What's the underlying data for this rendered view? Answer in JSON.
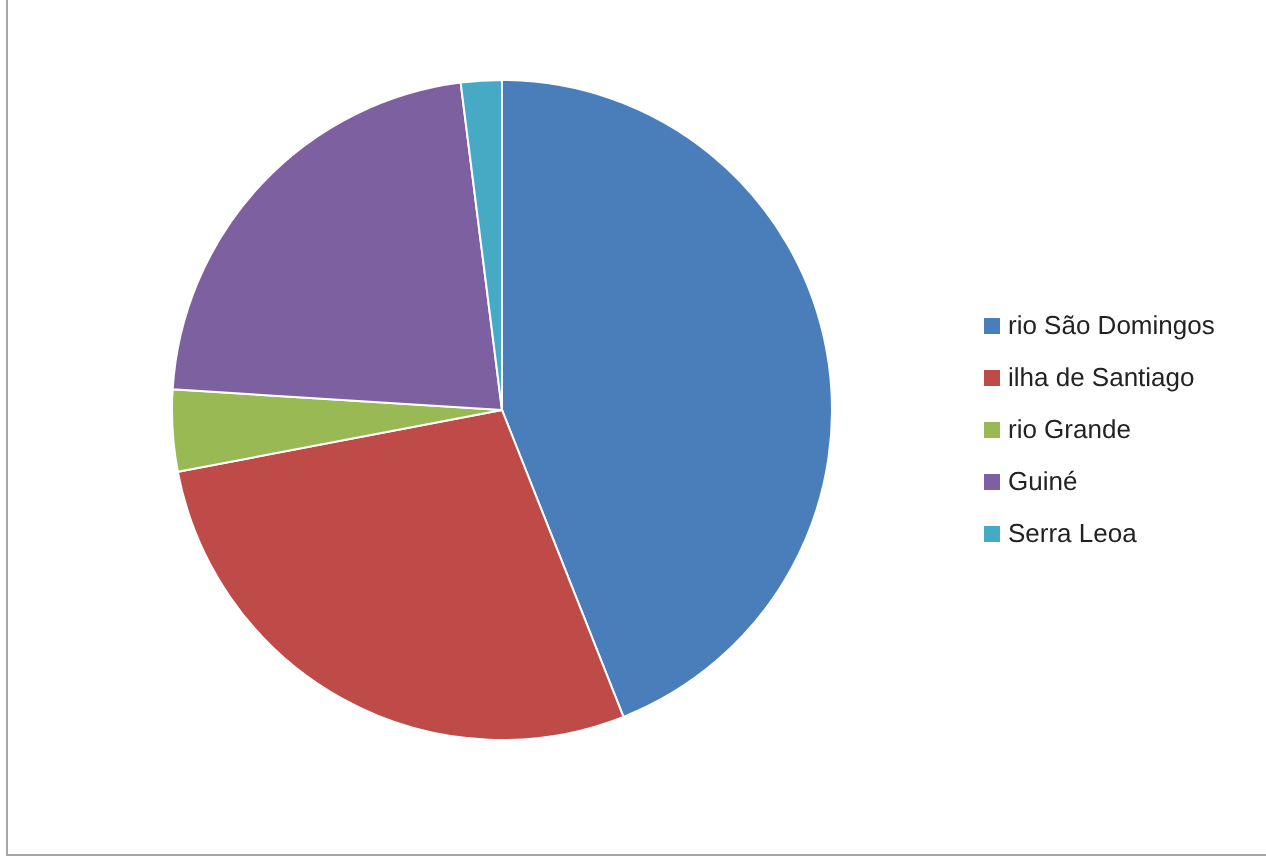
{
  "chart_data": {
    "type": "pie",
    "categories": [
      "rio São Domingos",
      "ilha de Santiago",
      "rio Grande",
      "Guiné",
      "Serra Leoa"
    ],
    "values": [
      44,
      28,
      4,
      22,
      2
    ],
    "colors": [
      "#4a7ebb",
      "#be4b48",
      "#98b954",
      "#7d60a0",
      "#46aac5"
    ],
    "legend": "right"
  }
}
